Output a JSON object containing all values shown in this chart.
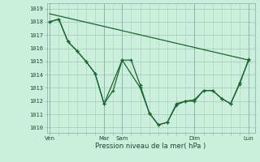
{
  "bg_color": "#cceedd",
  "grid_color": "#aaccbb",
  "line_color": "#1a6630",
  "marker_color": "#1a6630",
  "ylabel_vals": [
    1010,
    1011,
    1012,
    1013,
    1014,
    1015,
    1016,
    1017,
    1018,
    1019
  ],
  "ylim": [
    1009.6,
    1019.4
  ],
  "xlabel": "Pression niveau de la mer( hPa )",
  "xtick_labels": [
    "Ven",
    "Mar",
    "Sam",
    "Dim",
    "Lun"
  ],
  "xtick_positions": [
    0,
    36,
    48,
    96,
    132
  ],
  "vline_positions": [
    0,
    36,
    48,
    96,
    132
  ],
  "series1_x": [
    0,
    132
  ],
  "series1_y": [
    1018.6,
    1015.1
  ],
  "series2_x": [
    0,
    6,
    12,
    18,
    24,
    30,
    36,
    42,
    48,
    60,
    66,
    72,
    78,
    84,
    90,
    96,
    102,
    108,
    114,
    120,
    126,
    132
  ],
  "series2_y": [
    1018.0,
    1018.2,
    1016.5,
    1015.8,
    1015.0,
    1014.1,
    1011.8,
    1012.8,
    1015.1,
    1013.0,
    1011.1,
    1010.2,
    1010.4,
    1011.8,
    1012.0,
    1012.1,
    1012.8,
    1012.8,
    1012.2,
    1011.8,
    1013.4,
    1015.1
  ],
  "series3_x": [
    0,
    6,
    12,
    18,
    24,
    30,
    36,
    48,
    54,
    60,
    66,
    72,
    78,
    84,
    90,
    96,
    102,
    108,
    114,
    120,
    126,
    132
  ],
  "series3_y": [
    1018.0,
    1018.2,
    1016.5,
    1015.8,
    1015.0,
    1014.1,
    1011.8,
    1015.1,
    1015.1,
    1013.2,
    1011.1,
    1010.2,
    1010.4,
    1011.7,
    1012.0,
    1012.0,
    1012.8,
    1012.8,
    1012.2,
    1011.8,
    1013.3,
    1015.2
  ],
  "xlim": [
    -2,
    136
  ]
}
